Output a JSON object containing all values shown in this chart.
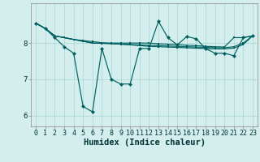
{
  "xlabel": "Humidex (Indice chaleur)",
  "bg_color": "#d4eeee",
  "grid_color": "#aad4d4",
  "line_color": "#006060",
  "x_values": [
    0,
    1,
    2,
    3,
    4,
    5,
    6,
    7,
    8,
    9,
    10,
    11,
    12,
    13,
    14,
    15,
    16,
    17,
    18,
    19,
    20,
    21,
    22,
    23
  ],
  "series1": [
    8.55,
    8.4,
    8.2,
    8.15,
    8.1,
    8.05,
    8.0,
    8.0,
    8.0,
    8.0,
    8.0,
    8.0,
    8.0,
    7.98,
    7.97,
    7.96,
    7.94,
    7.93,
    7.91,
    7.9,
    7.89,
    8.15,
    8.15,
    8.2
  ],
  "series2": [
    8.55,
    8.4,
    8.2,
    8.15,
    8.1,
    8.05,
    8.0,
    7.99,
    7.98,
    7.97,
    7.96,
    7.95,
    7.94,
    7.93,
    7.92,
    7.91,
    7.9,
    7.89,
    7.88,
    7.87,
    7.87,
    7.9,
    8.0,
    8.2
  ],
  "series3": [
    8.55,
    8.4,
    8.2,
    8.15,
    8.1,
    8.07,
    8.04,
    8.01,
    7.99,
    7.97,
    7.95,
    7.93,
    7.91,
    7.9,
    7.89,
    7.88,
    7.87,
    7.86,
    7.85,
    7.84,
    7.84,
    7.86,
    7.96,
    8.2
  ],
  "series_jagged": [
    8.55,
    8.4,
    8.15,
    7.9,
    7.72,
    6.25,
    6.1,
    7.85,
    7.0,
    6.87,
    6.87,
    7.85,
    7.85,
    8.6,
    8.15,
    7.95,
    8.18,
    8.12,
    7.85,
    7.72,
    7.72,
    7.65,
    8.15,
    8.2
  ],
  "ylim": [
    5.7,
    9.1
  ],
  "xlim": [
    -0.5,
    23.5
  ],
  "yticks": [
    6,
    7,
    8
  ],
  "xticks": [
    0,
    1,
    2,
    3,
    4,
    5,
    6,
    7,
    8,
    9,
    10,
    11,
    12,
    13,
    14,
    15,
    16,
    17,
    18,
    19,
    20,
    21,
    22,
    23
  ],
  "xlabel_fontsize": 7.5,
  "tick_fontsize": 6.0
}
